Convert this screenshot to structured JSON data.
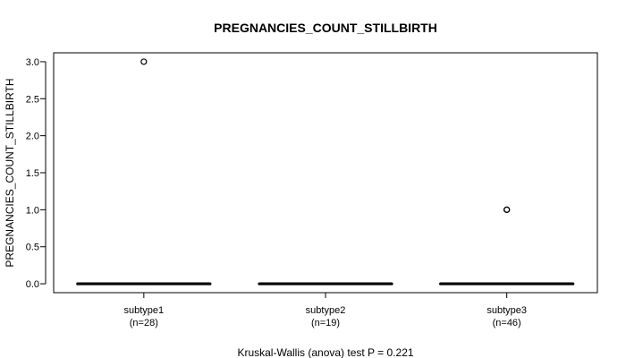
{
  "chart_data": {
    "type": "boxplot",
    "title": "PREGNANCIES_COUNT_STILLBIRTH",
    "ylabel": "PREGNANCIES_COUNT_STILLBIRTH",
    "xlabel": "",
    "ylim": [
      -0.12,
      3.12
    ],
    "yticks": [
      "0.0",
      "0.5",
      "1.0",
      "1.5",
      "2.0",
      "2.5",
      "3.0"
    ],
    "grid": false,
    "groups": [
      {
        "name": "subtype1",
        "n_label": "(n=28)",
        "min": 0,
        "q1": 0,
        "median": 0,
        "q3": 0,
        "max": 0,
        "outliers": [
          3
        ]
      },
      {
        "name": "subtype2",
        "n_label": "(n=19)",
        "min": 0,
        "q1": 0,
        "median": 0,
        "q3": 0,
        "max": 0,
        "outliers": []
      },
      {
        "name": "subtype3",
        "n_label": "(n=46)",
        "min": 0,
        "q1": 0,
        "median": 0,
        "q3": 0,
        "max": 0,
        "outliers": [
          1,
          1
        ]
      }
    ],
    "footnote": "Kruskal-Wallis (anova) test P = 0.221"
  }
}
